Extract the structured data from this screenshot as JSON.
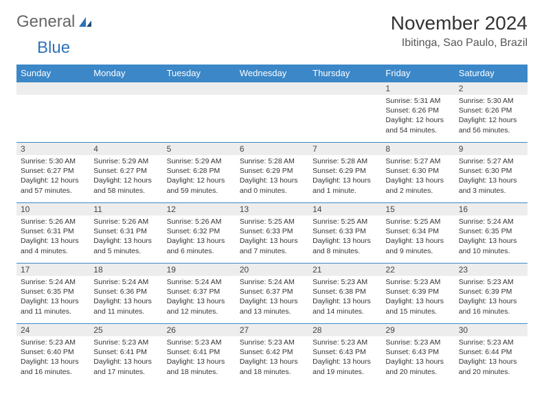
{
  "logo": {
    "text1": "General",
    "text2": "Blue"
  },
  "header": {
    "month_title": "November 2024",
    "location": "Ibitinga, Sao Paulo, Brazil"
  },
  "columns": [
    "Sunday",
    "Monday",
    "Tuesday",
    "Wednesday",
    "Thursday",
    "Friday",
    "Saturday"
  ],
  "colors": {
    "header_bg": "#3b87c8",
    "header_fg": "#ffffff",
    "daynum_bg": "#ededed",
    "cell_border": "#3b87c8",
    "logo_accent": "#2d73b8"
  },
  "weeks": [
    [
      {
        "day": "",
        "lines": []
      },
      {
        "day": "",
        "lines": []
      },
      {
        "day": "",
        "lines": []
      },
      {
        "day": "",
        "lines": []
      },
      {
        "day": "",
        "lines": []
      },
      {
        "day": "1",
        "lines": [
          "Sunrise: 5:31 AM",
          "Sunset: 6:26 PM",
          "Daylight: 12 hours",
          "and 54 minutes."
        ]
      },
      {
        "day": "2",
        "lines": [
          "Sunrise: 5:30 AM",
          "Sunset: 6:26 PM",
          "Daylight: 12 hours",
          "and 56 minutes."
        ]
      }
    ],
    [
      {
        "day": "3",
        "lines": [
          "Sunrise: 5:30 AM",
          "Sunset: 6:27 PM",
          "Daylight: 12 hours",
          "and 57 minutes."
        ]
      },
      {
        "day": "4",
        "lines": [
          "Sunrise: 5:29 AM",
          "Sunset: 6:27 PM",
          "Daylight: 12 hours",
          "and 58 minutes."
        ]
      },
      {
        "day": "5",
        "lines": [
          "Sunrise: 5:29 AM",
          "Sunset: 6:28 PM",
          "Daylight: 12 hours",
          "and 59 minutes."
        ]
      },
      {
        "day": "6",
        "lines": [
          "Sunrise: 5:28 AM",
          "Sunset: 6:29 PM",
          "Daylight: 13 hours",
          "and 0 minutes."
        ]
      },
      {
        "day": "7",
        "lines": [
          "Sunrise: 5:28 AM",
          "Sunset: 6:29 PM",
          "Daylight: 13 hours",
          "and 1 minute."
        ]
      },
      {
        "day": "8",
        "lines": [
          "Sunrise: 5:27 AM",
          "Sunset: 6:30 PM",
          "Daylight: 13 hours",
          "and 2 minutes."
        ]
      },
      {
        "day": "9",
        "lines": [
          "Sunrise: 5:27 AM",
          "Sunset: 6:30 PM",
          "Daylight: 13 hours",
          "and 3 minutes."
        ]
      }
    ],
    [
      {
        "day": "10",
        "lines": [
          "Sunrise: 5:26 AM",
          "Sunset: 6:31 PM",
          "Daylight: 13 hours",
          "and 4 minutes."
        ]
      },
      {
        "day": "11",
        "lines": [
          "Sunrise: 5:26 AM",
          "Sunset: 6:31 PM",
          "Daylight: 13 hours",
          "and 5 minutes."
        ]
      },
      {
        "day": "12",
        "lines": [
          "Sunrise: 5:26 AM",
          "Sunset: 6:32 PM",
          "Daylight: 13 hours",
          "and 6 minutes."
        ]
      },
      {
        "day": "13",
        "lines": [
          "Sunrise: 5:25 AM",
          "Sunset: 6:33 PM",
          "Daylight: 13 hours",
          "and 7 minutes."
        ]
      },
      {
        "day": "14",
        "lines": [
          "Sunrise: 5:25 AM",
          "Sunset: 6:33 PM",
          "Daylight: 13 hours",
          "and 8 minutes."
        ]
      },
      {
        "day": "15",
        "lines": [
          "Sunrise: 5:25 AM",
          "Sunset: 6:34 PM",
          "Daylight: 13 hours",
          "and 9 minutes."
        ]
      },
      {
        "day": "16",
        "lines": [
          "Sunrise: 5:24 AM",
          "Sunset: 6:35 PM",
          "Daylight: 13 hours",
          "and 10 minutes."
        ]
      }
    ],
    [
      {
        "day": "17",
        "lines": [
          "Sunrise: 5:24 AM",
          "Sunset: 6:35 PM",
          "Daylight: 13 hours",
          "and 11 minutes."
        ]
      },
      {
        "day": "18",
        "lines": [
          "Sunrise: 5:24 AM",
          "Sunset: 6:36 PM",
          "Daylight: 13 hours",
          "and 11 minutes."
        ]
      },
      {
        "day": "19",
        "lines": [
          "Sunrise: 5:24 AM",
          "Sunset: 6:37 PM",
          "Daylight: 13 hours",
          "and 12 minutes."
        ]
      },
      {
        "day": "20",
        "lines": [
          "Sunrise: 5:24 AM",
          "Sunset: 6:37 PM",
          "Daylight: 13 hours",
          "and 13 minutes."
        ]
      },
      {
        "day": "21",
        "lines": [
          "Sunrise: 5:23 AM",
          "Sunset: 6:38 PM",
          "Daylight: 13 hours",
          "and 14 minutes."
        ]
      },
      {
        "day": "22",
        "lines": [
          "Sunrise: 5:23 AM",
          "Sunset: 6:39 PM",
          "Daylight: 13 hours",
          "and 15 minutes."
        ]
      },
      {
        "day": "23",
        "lines": [
          "Sunrise: 5:23 AM",
          "Sunset: 6:39 PM",
          "Daylight: 13 hours",
          "and 16 minutes."
        ]
      }
    ],
    [
      {
        "day": "24",
        "lines": [
          "Sunrise: 5:23 AM",
          "Sunset: 6:40 PM",
          "Daylight: 13 hours",
          "and 16 minutes."
        ]
      },
      {
        "day": "25",
        "lines": [
          "Sunrise: 5:23 AM",
          "Sunset: 6:41 PM",
          "Daylight: 13 hours",
          "and 17 minutes."
        ]
      },
      {
        "day": "26",
        "lines": [
          "Sunrise: 5:23 AM",
          "Sunset: 6:41 PM",
          "Daylight: 13 hours",
          "and 18 minutes."
        ]
      },
      {
        "day": "27",
        "lines": [
          "Sunrise: 5:23 AM",
          "Sunset: 6:42 PM",
          "Daylight: 13 hours",
          "and 18 minutes."
        ]
      },
      {
        "day": "28",
        "lines": [
          "Sunrise: 5:23 AM",
          "Sunset: 6:43 PM",
          "Daylight: 13 hours",
          "and 19 minutes."
        ]
      },
      {
        "day": "29",
        "lines": [
          "Sunrise: 5:23 AM",
          "Sunset: 6:43 PM",
          "Daylight: 13 hours",
          "and 20 minutes."
        ]
      },
      {
        "day": "30",
        "lines": [
          "Sunrise: 5:23 AM",
          "Sunset: 6:44 PM",
          "Daylight: 13 hours",
          "and 20 minutes."
        ]
      }
    ]
  ]
}
